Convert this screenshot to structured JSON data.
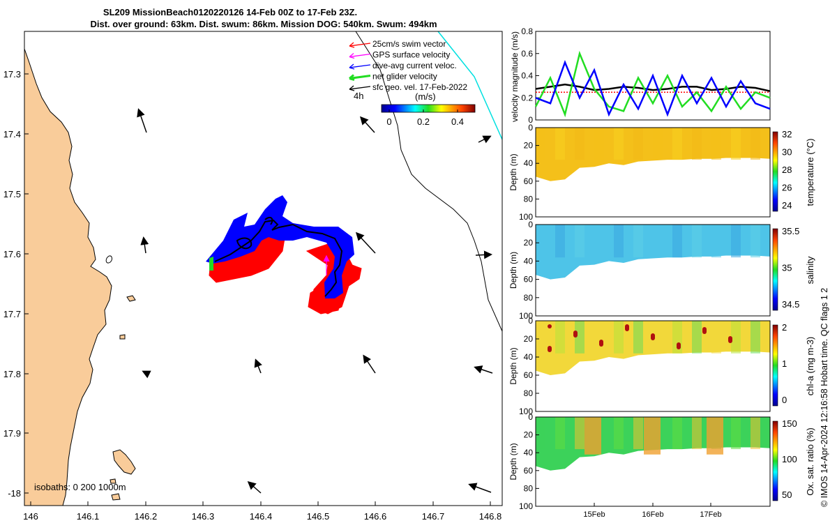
{
  "header": {
    "line1": "SL209 MissionBeach0120220126 14-Feb 00Z to 17-Feb 23Z.",
    "line2": "Dist. over ground: 63km. Dist. swum: 86km. Mission DOG: 540km. Swum: 494km"
  },
  "side_caption": "© IMOS 14-Apr-2024 12:16:58 Hobart time. QC flags 1  2",
  "map": {
    "x_ticks": [
      "146",
      "146.1",
      "146.2",
      "146.3",
      "146.4",
      "146.5",
      "146.6",
      "146.7",
      "146.8"
    ],
    "y_ticks": [
      "17.3",
      "17.4",
      "17.5",
      "17.6",
      "17.7",
      "17.8",
      "17.9",
      "-18"
    ],
    "isobath_label": "isobaths: 0   200  1000m",
    "time_label": "4h",
    "legend": [
      {
        "label": "25cm/s swim vector",
        "color": "#ff0000"
      },
      {
        "label": "GPS surface velocity",
        "color": "#ff00ff"
      },
      {
        "label": "dive-avg current veloc.",
        "color": "#0000ff"
      },
      {
        "label": "net glider velocity",
        "color": "#22dd22"
      },
      {
        "label": "sfc geo. vel. 17-Feb-2022",
        "color": "#000000"
      }
    ],
    "colorbar": {
      "unit": "(m/s)",
      "ticks": [
        "0",
        "0.2",
        "0.4"
      ]
    },
    "colors": {
      "land": "#f9cc9a",
      "track_blue": "#0000ff",
      "track_red": "#ff0000"
    }
  },
  "chart_data": [
    {
      "type": "line",
      "ylabel": "velocity magnitude (m/s)",
      "ylim": [
        0,
        0.8
      ],
      "y_ticks": [
        "0",
        "0.2",
        "0.4",
        "0.6",
        "0.8"
      ],
      "x_days": [
        14.0,
        14.25,
        14.5,
        14.75,
        15.0,
        15.25,
        15.5,
        15.75,
        16.0,
        16.25,
        16.5,
        16.75,
        17.0,
        17.25,
        17.5,
        17.75,
        18.0
      ],
      "series": [
        {
          "color": "#000000",
          "values": [
            0.28,
            0.3,
            0.32,
            0.3,
            0.27,
            0.28,
            0.3,
            0.29,
            0.27,
            0.28,
            0.3,
            0.3,
            0.27,
            0.28,
            0.3,
            0.29,
            0.26
          ]
        },
        {
          "color": "#ff0000",
          "values": [
            0.25,
            0.25,
            0.25,
            0.25,
            0.25,
            0.25,
            0.25,
            0.25,
            0.25,
            0.25,
            0.25,
            0.25,
            0.25,
            0.25,
            0.25,
            0.25,
            0.25
          ]
        },
        {
          "color": "#22dd22",
          "values": [
            0.12,
            0.38,
            0.05,
            0.6,
            0.28,
            0.12,
            0.08,
            0.38,
            0.15,
            0.4,
            0.12,
            0.25,
            0.08,
            0.3,
            0.1,
            0.25,
            0.2
          ]
        },
        {
          "color": "#0000ff",
          "values": [
            0.2,
            0.15,
            0.52,
            0.2,
            0.45,
            0.05,
            0.32,
            0.1,
            0.4,
            0.05,
            0.4,
            0.15,
            0.38,
            0.12,
            0.35,
            0.15,
            0.1
          ]
        }
      ]
    },
    {
      "type": "heatmap",
      "ylabel": "Depth (m)",
      "clabel": "temperature (°C)",
      "depth_ticks": [
        "0",
        "20",
        "40",
        "60",
        "80",
        "100"
      ],
      "cbar_ticks": [
        "32",
        "30",
        "28",
        "26",
        "24"
      ],
      "dive_depth_m": [
        55,
        60,
        58,
        45,
        44,
        40,
        42,
        38,
        37,
        36,
        36,
        35,
        35,
        34,
        34,
        34,
        35
      ]
    },
    {
      "type": "heatmap",
      "ylabel": "Depth (m)",
      "clabel": "salinity",
      "depth_ticks": [
        "0",
        "20",
        "40",
        "60",
        "80",
        "100"
      ],
      "cbar_ticks": [
        "35.5",
        "35",
        "34.5"
      ],
      "dive_depth_m": [
        55,
        60,
        58,
        45,
        44,
        40,
        42,
        38,
        37,
        36,
        36,
        35,
        35,
        34,
        34,
        34,
        35
      ]
    },
    {
      "type": "heatmap",
      "ylabel": "Depth (m)",
      "clabel": "chl-a (mg m-3)",
      "depth_ticks": [
        "0",
        "20",
        "40",
        "60",
        "80",
        "100"
      ],
      "cbar_ticks": [
        "2",
        "1",
        "0"
      ],
      "dive_depth_m": [
        55,
        60,
        58,
        45,
        44,
        40,
        42,
        38,
        37,
        36,
        36,
        35,
        35,
        34,
        34,
        34,
        35
      ]
    },
    {
      "type": "heatmap",
      "ylabel": "Depth (m)",
      "clabel": "Ox. sat. ratio (%)",
      "depth_ticks": [
        "0",
        "20",
        "40",
        "60",
        "80",
        "100"
      ],
      "cbar_ticks": [
        "150",
        "100",
        "50"
      ],
      "x_ticks": [
        "15Feb",
        "16Feb",
        "17Feb"
      ],
      "dive_depth_m": [
        55,
        60,
        58,
        45,
        44,
        40,
        42,
        38,
        37,
        36,
        36,
        35,
        35,
        34,
        34,
        34,
        35
      ]
    }
  ]
}
